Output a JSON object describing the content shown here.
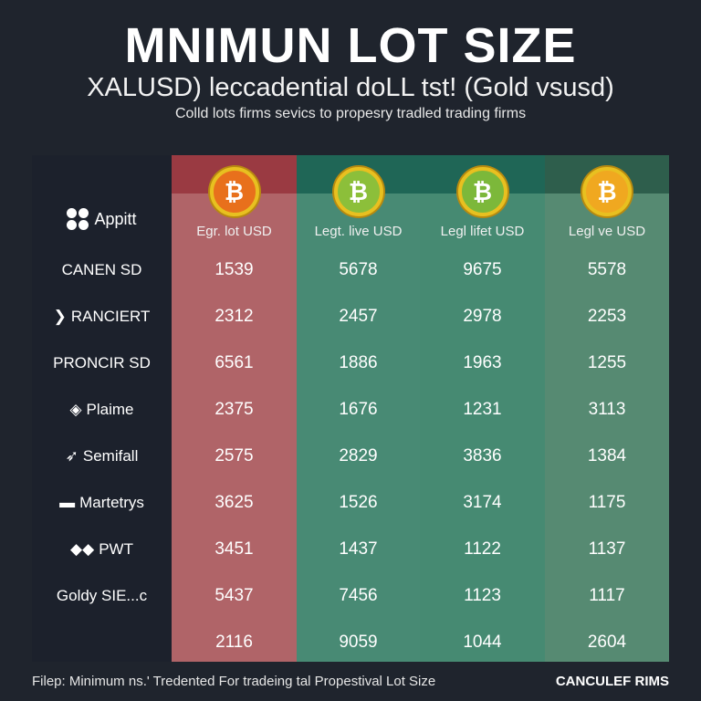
{
  "header": {
    "title": "MNIMUN LOT SIZE",
    "subtitle": "XALUSD) leccadential doLL tst! (Gold vsusd)",
    "tagline": "Colld lots firms sevics to propesry tradled trading firms"
  },
  "table": {
    "firm_header": "Appitt",
    "columns": [
      {
        "label": "Egr. lot USD",
        "coin": "bitcoin-orange",
        "band": "#9a3a42",
        "body": "#b06468",
        "coin_color": "#e8701c"
      },
      {
        "label": "Legt. live USD",
        "coin": "bitcoin-green",
        "band": "#1f6656",
        "body": "#488a74",
        "coin_color": "#8cbf3a"
      },
      {
        "label": "Legl lifet USD",
        "coin": "bitcoin-green",
        "band": "#1f6656",
        "body": "#468a72",
        "coin_color": "#7cb83a"
      },
      {
        "label": "Legl ve USD",
        "coin": "bitcoin-gold",
        "band": "#2e5e4c",
        "body": "#568a72",
        "coin_color": "#f0a820"
      }
    ],
    "rows": [
      {
        "firm": "CANEN SD",
        "icon": "",
        "values": [
          "1539",
          "5678",
          "9675",
          "5578"
        ]
      },
      {
        "firm": "RANCIERT",
        "icon": "chevron-logo-icon",
        "values": [
          "2312",
          "2457",
          "2978",
          "2253"
        ]
      },
      {
        "firm": "PRONCIR SD",
        "icon": "",
        "values": [
          "6561",
          "1886",
          "1963",
          "1255"
        ]
      },
      {
        "firm": "Plaime",
        "icon": "diamond-logo-icon",
        "values": [
          "2375",
          "1676",
          "1231",
          "3113"
        ]
      },
      {
        "firm": "Semifall",
        "icon": "wing-logo-icon",
        "values": [
          "2575",
          "2829",
          "3836",
          "1384"
        ]
      },
      {
        "firm": "Martetrys",
        "icon": "square-logo-icon",
        "values": [
          "3625",
          "1526",
          "3174",
          "1175"
        ]
      },
      {
        "firm": "PWT",
        "icon": "double-diamond-logo-icon",
        "values": [
          "3451",
          "1437",
          "1122",
          "1137"
        ]
      },
      {
        "firm": "Goldy SIE...c",
        "icon": "",
        "values": [
          "5437",
          "7456",
          "1123",
          "1117"
        ]
      },
      {
        "firm": "",
        "icon": "",
        "values": [
          "2116",
          "9059",
          "1044",
          "2604"
        ]
      }
    ]
  },
  "footer": {
    "note": "Filep: Minimum ns.' Tredented For tradeing tal Propestival Lot Size",
    "brand": "CANCULEF RIMS"
  }
}
